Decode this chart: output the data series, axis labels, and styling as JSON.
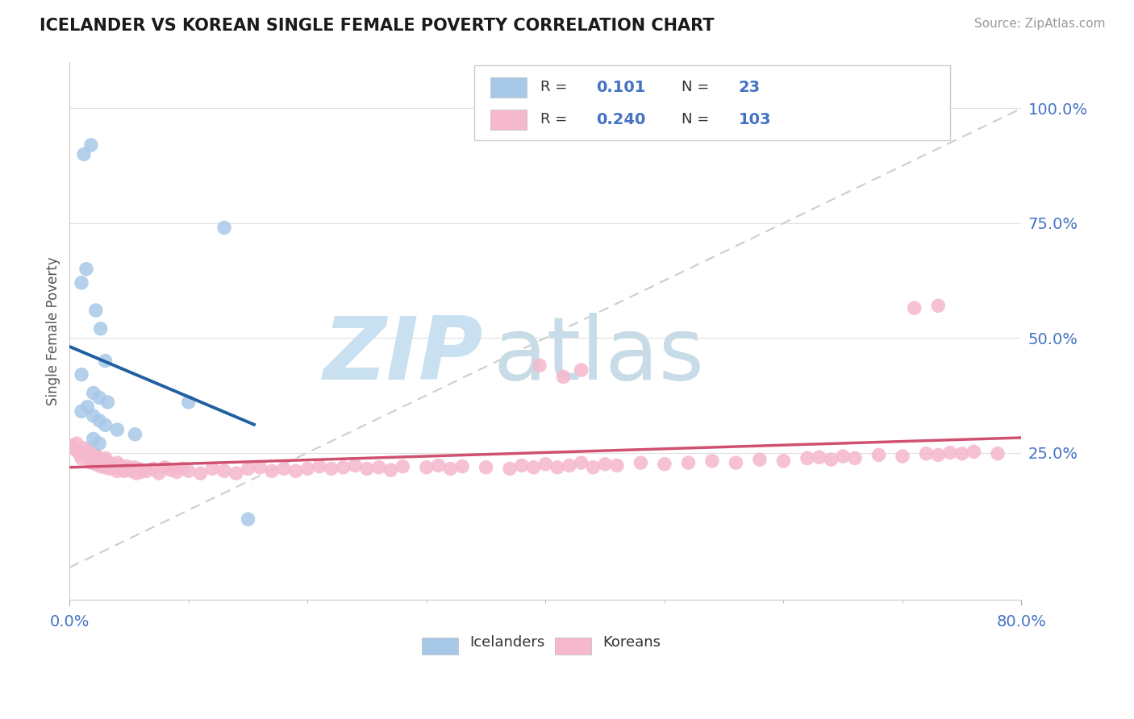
{
  "title": "ICELANDER VS KOREAN SINGLE FEMALE POVERTY CORRELATION CHART",
  "source_text": "Source: ZipAtlas.com",
  "ylabel": "Single Female Poverty",
  "right_ytick_vals": [
    0.25,
    0.5,
    0.75,
    1.0
  ],
  "right_ytick_labels": [
    "25.0%",
    "50.0%",
    "75.0%",
    "100.0%"
  ],
  "xlim": [
    0.0,
    0.8
  ],
  "ylim": [
    -0.07,
    1.1
  ],
  "iceland_color": "#a8c8e8",
  "korean_color": "#f5b8cc",
  "iceland_line_color": "#2060a0",
  "korean_line_color": "#d05070",
  "dashed_line_color": "#c8c8c8",
  "watermark_zip_color": "#c8e0f0",
  "watermark_atlas_color": "#c8dce8",
  "bg_color": "#ffffff",
  "grid_color": "#e0e0e0",
  "title_color": "#1a1a1a",
  "axis_label_color": "#4472c4",
  "ylabel_color": "#555555",
  "legend_text_color": "#333333",
  "legend_val_color": "#4472c4",
  "source_color": "#999999",
  "iceland_R_text": "0.101",
  "iceland_N_text": "23",
  "korean_R_text": "0.240",
  "korean_N_text": "103",
  "iceland_label": "Icelanders",
  "korean_label": "Koreans"
}
